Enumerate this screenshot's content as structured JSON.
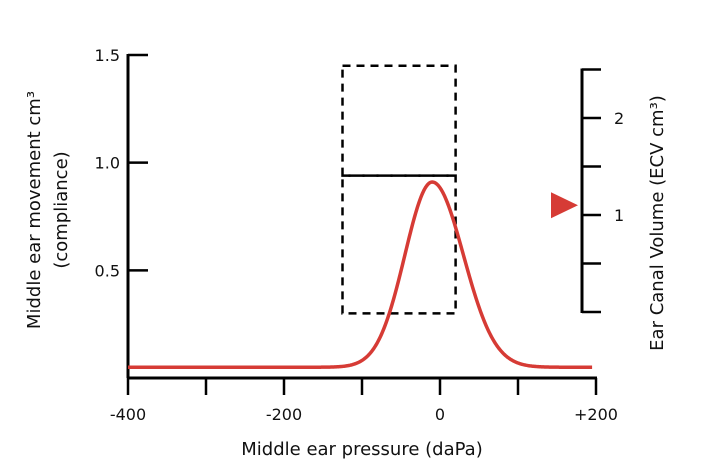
{
  "chart_data": {
    "type": "line",
    "xlabel": "Middle ear pressure (daPa)",
    "ylabel_line1": "Middle ear movement cm³",
    "ylabel_line2": "(compliance)",
    "y2label": "Ear Canal Volume (ECV cm³)",
    "xlim": [
      -400,
      200
    ],
    "ylim": [
      0,
      1.5
    ],
    "x_ticks": [
      -400,
      -300,
      -200,
      -100,
      0,
      100,
      200
    ],
    "x_tick_labels": [
      {
        "value": -400,
        "label": "-400"
      },
      {
        "value": -200,
        "label": "-200"
      },
      {
        "value": 0,
        "label": "0"
      },
      {
        "value": 200,
        "label": "+200"
      }
    ],
    "y_ticks": [
      0.5,
      1.0,
      1.5
    ],
    "y_tick_labels": [
      {
        "value": 0.5,
        "label": "0.5"
      },
      {
        "value": 1.0,
        "label": "1.0"
      },
      {
        "value": 1.5,
        "label": "1.5"
      }
    ],
    "y2lim": [
      0,
      2.5
    ],
    "y2_ticks": [
      0.5,
      1,
      1.5,
      2,
      2.5
    ],
    "y2_tick_labels": [
      {
        "value": 1,
        "label": "1"
      },
      {
        "value": 2,
        "label": "2"
      }
    ],
    "series": [
      {
        "color": "#d63b35",
        "curve": {
          "baseline": 0.05,
          "peak_x": -10,
          "peak_y": 0.91,
          "width_left": 35,
          "width_right": 40,
          "x_start": -400,
          "x_end": 195
        }
      }
    ],
    "normal_region_boxes": [
      {
        "x_min": -125,
        "x_max": 20,
        "y_min": 0.3,
        "y_max": 0.94
      },
      {
        "x_min": -125,
        "x_max": 20,
        "y_min": 0.94,
        "y_max": 1.45
      }
    ],
    "ecv_marker": {
      "value": 1.1,
      "color": "#d63b35",
      "shape": "triangle-right"
    },
    "grid": false
  }
}
